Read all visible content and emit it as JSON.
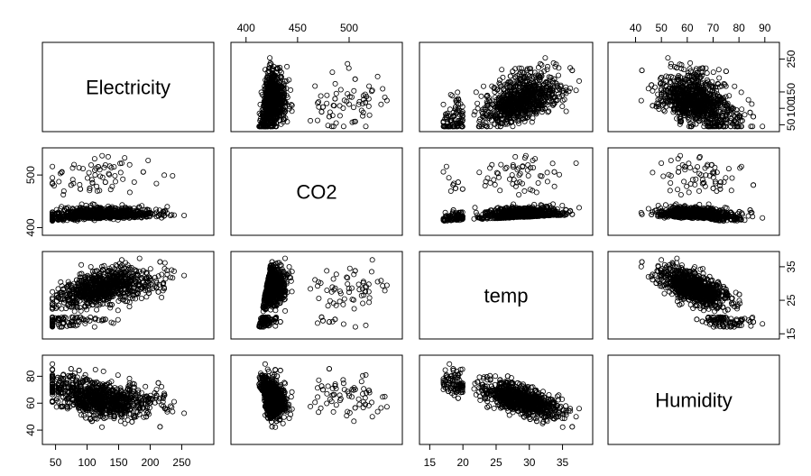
{
  "chart_data": {
    "type": "scatter",
    "subtype": "pairs",
    "variables": [
      {
        "name": "Electricity",
        "range": [
          40,
          290
        ],
        "ticks": [
          50,
          100,
          150,
          200,
          250
        ]
      },
      {
        "name": "CO2",
        "range": [
          392,
          545
        ],
        "ticks": [
          400,
          450,
          500
        ]
      },
      {
        "name": "temp",
        "range": [
          14.5,
          38.5
        ],
        "ticks": [
          15,
          20,
          25,
          30,
          35
        ]
      },
      {
        "name": "Humidity",
        "range": [
          32,
          93
        ],
        "ticks": [
          40,
          50,
          60,
          70,
          80,
          90
        ]
      }
    ],
    "axis_ticks": {
      "top": [
        {
          "var": "CO2",
          "labels": [
            "400",
            "450",
            "500"
          ]
        },
        {
          "var": "Humidity",
          "labels": [
            "40",
            "50",
            "60",
            "70",
            "80",
            "90"
          ]
        }
      ],
      "left": [
        {
          "var": "CO2",
          "labels": [
            "400",
            "500"
          ]
        },
        {
          "var": "Humidity",
          "labels": [
            "40",
            "60",
            "80"
          ]
        }
      ],
      "right": [
        {
          "var": "Electricity",
          "labels": [
            "50",
            "100",
            "150",
            "250"
          ]
        },
        {
          "var": "temp",
          "labels": [
            "15",
            "25",
            "35"
          ]
        }
      ],
      "bottom": [
        {
          "var": "Electricity",
          "labels": [
            "50",
            "100",
            "150",
            "200",
            "250"
          ]
        },
        {
          "var": "temp",
          "labels": [
            "15",
            "20",
            "25",
            "30",
            "35"
          ]
        }
      ]
    },
    "marker": "open-circle",
    "marker_color": "#000000",
    "grid": false,
    "title": "",
    "note": "Scatterplot matrix; each off-diagonal panel plots row variable (y) against column variable (x)."
  }
}
